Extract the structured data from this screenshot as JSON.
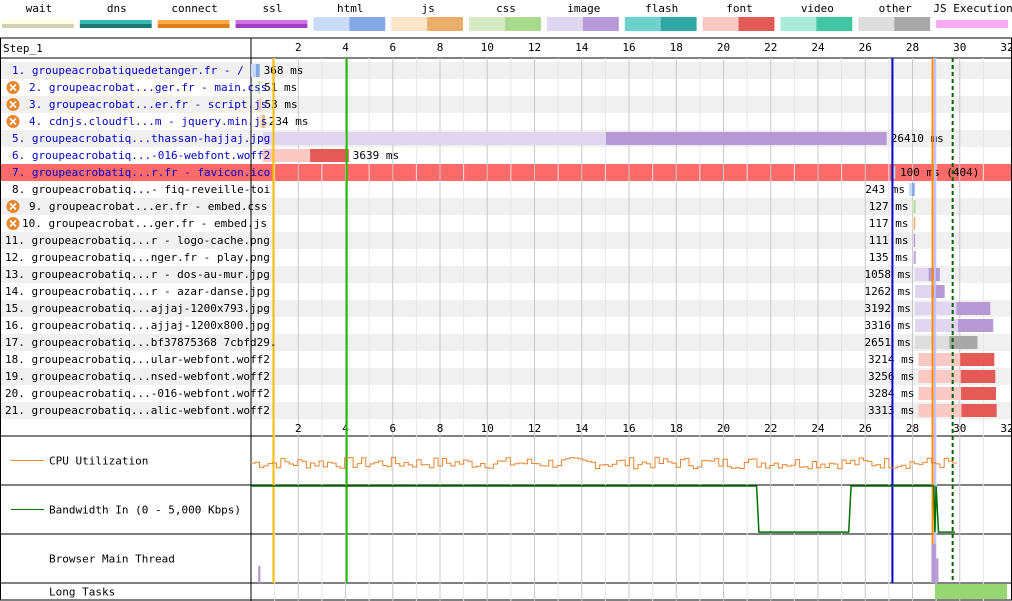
{
  "legend": [
    {
      "label": "wait",
      "colors": [
        "#fefee4",
        "#d2d2b3"
      ]
    },
    {
      "label": "dns",
      "colors": [
        "#37b7b4",
        "#1d7875"
      ]
    },
    {
      "label": "connect",
      "colors": [
        "#ffa94d",
        "#e0801d"
      ]
    },
    {
      "label": "ssl",
      "colors": [
        "#ce71e6",
        "#a03fbf"
      ]
    },
    {
      "label": "html",
      "colors": [
        "#c9dbf7",
        "#82a8e6"
      ]
    },
    {
      "label": "js",
      "colors": [
        "#fbe4c8",
        "#e8ae6a"
      ]
    },
    {
      "label": "css",
      "colors": [
        "#d6ebc3",
        "#a8d98c"
      ]
    },
    {
      "label": "image",
      "colors": [
        "#e0d6f0",
        "#b69ad8"
      ]
    },
    {
      "label": "flash",
      "colors": [
        "#6dd1ce",
        "#2fa6a2"
      ]
    },
    {
      "label": "font",
      "colors": [
        "#fbc9c4",
        "#e35a56"
      ]
    },
    {
      "label": "video",
      "colors": [
        "#a9ebd8",
        "#40c7a1"
      ]
    },
    {
      "label": "other",
      "colors": [
        "#dedede",
        "#a8a8a8"
      ]
    },
    {
      "label": "JS Execution",
      "colors": [
        "#f7a9f7",
        "#f7a9f7"
      ]
    }
  ],
  "step_label": "Step_1",
  "timeline_ticks": [
    "2",
    "4",
    "6",
    "8",
    "10",
    "12",
    "14",
    "16",
    "18",
    "20",
    "22",
    "24",
    "26",
    "28",
    "30",
    "32"
  ],
  "chart_data": {
    "type": "waterfall",
    "x_unit": "seconds",
    "xlim": [
      0,
      32
    ],
    "markers": [
      {
        "name": "start render",
        "t": 0.95,
        "color": "#ffc000"
      },
      {
        "name": "dom content loaded",
        "t": 4.05,
        "color": "#28bc00"
      },
      {
        "name": "document complete",
        "t": 27.15,
        "color": "#0000d0"
      },
      {
        "name": "on load",
        "t": 28.95,
        "color": "#c0c0ff"
      },
      {
        "name": "first contentful paint",
        "t": 28.85,
        "color": "#ff8c00"
      },
      {
        "name": "fully loaded",
        "t": 29.7,
        "color": "#006400",
        "dashed": true
      }
    ],
    "requests": [
      {
        "n": 1,
        "url": "groupeacrobatiquedetanger.fr - /",
        "type": "html",
        "start": 0,
        "ms": 368,
        "label": "368 ms",
        "link": true,
        "warn": false,
        "error": false
      },
      {
        "n": 2,
        "url": "groupeacrobat...ger.fr - main.css",
        "type": "css",
        "start": 0.3,
        "ms": 51,
        "label": "51 ms",
        "link": true,
        "warn": true,
        "error": false
      },
      {
        "n": 3,
        "url": "groupeacrobat...er.fr - script.js",
        "type": "js",
        "start": 0.32,
        "ms": 53,
        "label": "53 ms",
        "link": true,
        "warn": true,
        "error": false
      },
      {
        "n": 4,
        "url": "cdnjs.cloudfl...m - jquery.min.js",
        "type": "js",
        "start": 0.35,
        "ms": 234,
        "label": "234 ms",
        "link": true,
        "warn": true,
        "error": false
      },
      {
        "n": 5,
        "url": "groupeacrobatiq...thassan-hajjaj.jpg",
        "type": "image",
        "start": 0.5,
        "ms": 26410,
        "label": "26410 ms",
        "link": true,
        "warn": false,
        "error": false
      },
      {
        "n": 6,
        "url": "groupeacrobatiq...-016-webfont.woff2",
        "type": "font",
        "start": 0.5,
        "ms": 3639,
        "label": "3639 ms",
        "link": true,
        "warn": false,
        "error": false
      },
      {
        "n": 7,
        "url": "groupeacrobatiq...r.fr - favicon.ico",
        "type": "other",
        "start": 27.2,
        "ms": 100,
        "label": "100 ms (404)",
        "link": true,
        "warn": false,
        "error": true
      },
      {
        "n": 8,
        "url": "groupeacrobatiq...- fiq-reveille-toi",
        "type": "html",
        "start": 27.85,
        "ms": 243,
        "label": "243 ms",
        "link": false,
        "warn": false,
        "error": false
      },
      {
        "n": 9,
        "url": "groupeacrobat...er.fr - embed.css",
        "type": "css",
        "start": 28.0,
        "ms": 127,
        "label": "127 ms",
        "link": false,
        "warn": true,
        "error": false
      },
      {
        "n": 10,
        "url": "groupeacrobat...ger.fr - embed.js",
        "type": "js",
        "start": 28.0,
        "ms": 117,
        "label": "117 ms",
        "link": false,
        "warn": true,
        "error": false
      },
      {
        "n": 11,
        "url": "groupeacrobatiq...r - logo-cache.png",
        "type": "image",
        "start": 28.0,
        "ms": 111,
        "label": "111 ms",
        "link": false,
        "warn": false,
        "error": false
      },
      {
        "n": 12,
        "url": "groupeacrobatiq...nger.fr - play.png",
        "type": "image",
        "start": 28.0,
        "ms": 135,
        "label": "135 ms",
        "link": false,
        "warn": false,
        "error": false
      },
      {
        "n": 13,
        "url": "groupeacrobatiq...r - dos-au-mur.jpg",
        "type": "image",
        "start": 28.1,
        "ms": 1058,
        "label": "1058 ms",
        "link": false,
        "warn": false,
        "error": false
      },
      {
        "n": 14,
        "url": "groupeacrobatiq...r - azar-danse.jpg",
        "type": "image",
        "start": 28.1,
        "ms": 1262,
        "label": "1262 ms",
        "link": false,
        "warn": false,
        "error": false
      },
      {
        "n": 15,
        "url": "groupeacrobatiq...ajjaj-1200x793.jpg",
        "type": "image",
        "start": 28.1,
        "ms": 3192,
        "label": "3192 ms",
        "link": false,
        "warn": false,
        "error": false
      },
      {
        "n": 16,
        "url": "groupeacrobatiq...ajjaj-1200x800.jpg",
        "type": "image",
        "start": 28.1,
        "ms": 3316,
        "label": "3316 ms",
        "link": false,
        "warn": false,
        "error": false
      },
      {
        "n": 17,
        "url": "groupeacrobatiq...bf37875368 7cbfd29.",
        "type": "other",
        "start": 28.1,
        "ms": 2651,
        "label": "2651 ms",
        "link": false,
        "warn": false,
        "error": false
      },
      {
        "n": 18,
        "url": "groupeacrobatiq...ular-webfont.woff2",
        "type": "font",
        "start": 28.25,
        "ms": 3214,
        "label": "3214 ms",
        "link": false,
        "warn": false,
        "error": false
      },
      {
        "n": 19,
        "url": "groupeacrobatiq...nsed-webfont.woff2",
        "type": "font",
        "start": 28.25,
        "ms": 3256,
        "label": "3256 ms",
        "link": false,
        "warn": false,
        "error": false
      },
      {
        "n": 20,
        "url": "groupeacrobatiq...-016-webfont.woff2",
        "type": "font",
        "start": 28.25,
        "ms": 3284,
        "label": "3284 ms",
        "link": false,
        "warn": false,
        "error": false
      },
      {
        "n": 21,
        "url": "groupeacrobatiq...alic-webfont.woff2",
        "type": "font",
        "start": 28.25,
        "ms": 3313,
        "label": "3313 ms",
        "link": false,
        "warn": false,
        "error": false
      }
    ],
    "cpu_label": "CPU Utilization",
    "bandwidth_label": "Bandwidth In (0 - 5,000 Kbps)",
    "main_thread_label": "Browser Main Thread",
    "long_tasks_label": "Long Tasks",
    "bandwidth_steps": [
      {
        "t": 0,
        "v": 1.0
      },
      {
        "t": 21.4,
        "v": 1.0
      },
      {
        "t": 21.5,
        "v": 0.02
      },
      {
        "t": 25.3,
        "v": 0.02
      },
      {
        "t": 25.4,
        "v": 1.0
      },
      {
        "t": 28.9,
        "v": 1.0
      },
      {
        "t": 28.95,
        "v": 0.02
      },
      {
        "t": 29.0,
        "v": 1.0
      },
      {
        "t": 29.1,
        "v": 0.02
      },
      {
        "t": 29.8,
        "v": 0.02
      }
    ],
    "long_tasks": [
      {
        "start": 28.95,
        "end": 32
      }
    ]
  }
}
